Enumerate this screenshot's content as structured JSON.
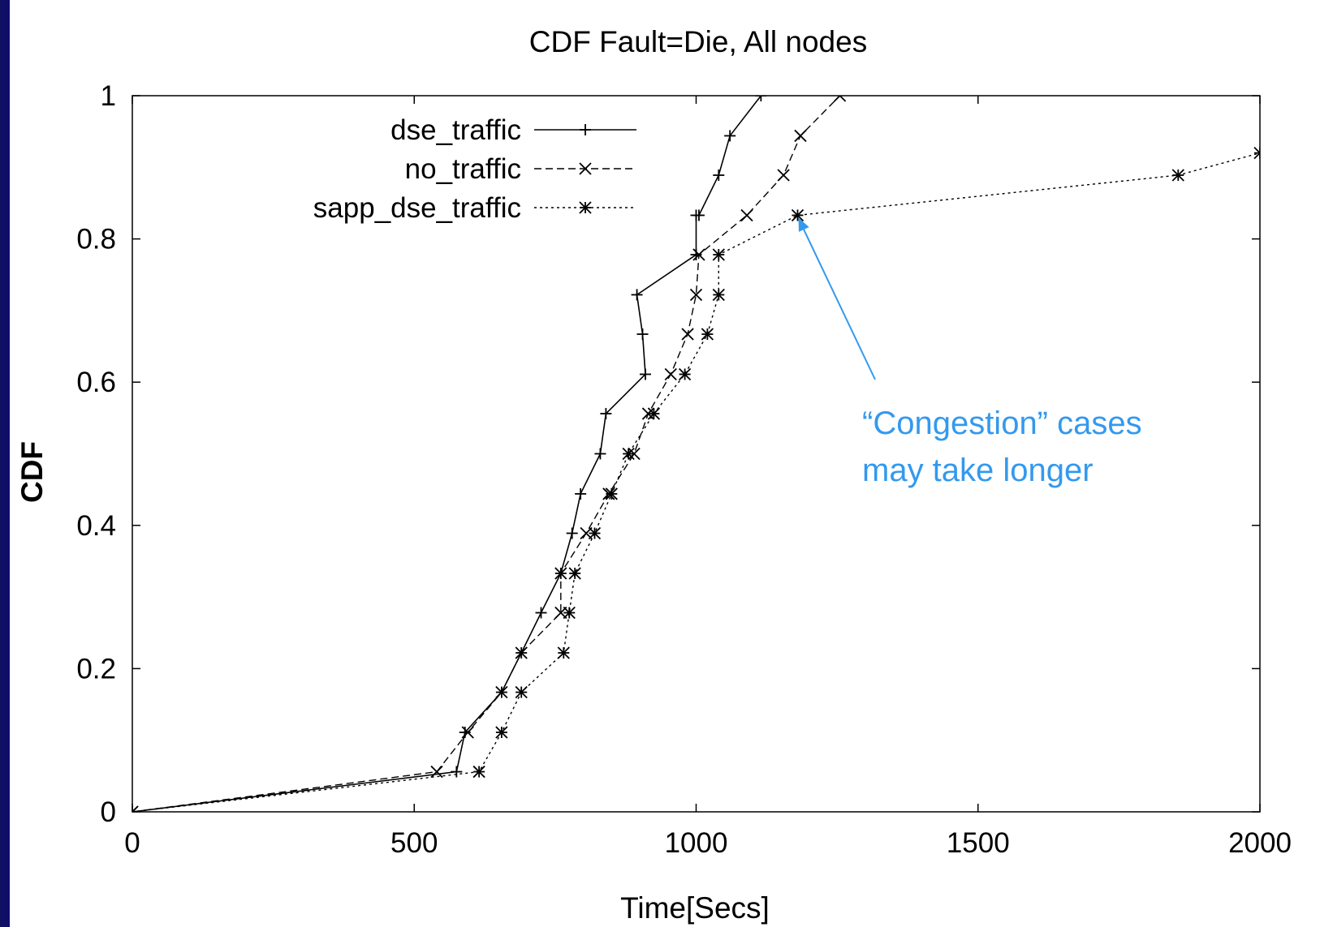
{
  "chart_data": {
    "type": "line",
    "title": "CDF Fault=Die, All nodes",
    "xlabel": "Time[Secs]",
    "ylabel": "CDF",
    "xlim": [
      0,
      2000
    ],
    "ylim": [
      0,
      1
    ],
    "xticks": [
      "0",
      "500",
      "1000",
      "1500",
      "2000"
    ],
    "yticks": [
      "0",
      "0.2",
      "0.4",
      "0.6",
      "0.8",
      "1"
    ],
    "grid": false,
    "legend_position": "top-left",
    "series": [
      {
        "name": "dse_traffic",
        "line_style": "solid",
        "marker": "+",
        "x": [
          0,
          575,
          590,
          655,
          690,
          725,
          760,
          780,
          795,
          830,
          840,
          910,
          905,
          895,
          1000,
          1000,
          1005,
          1040,
          1060,
          1115
        ],
        "y": [
          0,
          0.056,
          0.111,
          0.167,
          0.222,
          0.278,
          0.333,
          0.389,
          0.444,
          0.5,
          0.556,
          0.611,
          0.667,
          0.722,
          0.778,
          0.833,
          0.833,
          0.889,
          0.944,
          1.0
        ]
      },
      {
        "name": "no_traffic",
        "line_style": "dashed",
        "marker": "x",
        "x": [
          0,
          540,
          595,
          655,
          690,
          760,
          760,
          805,
          845,
          890,
          915,
          955,
          985,
          1000,
          1005,
          1090,
          1155,
          1185,
          1255
        ],
        "y": [
          0,
          0.056,
          0.111,
          0.167,
          0.222,
          0.278,
          0.333,
          0.389,
          0.444,
          0.5,
          0.556,
          0.611,
          0.667,
          0.722,
          0.778,
          0.833,
          0.889,
          0.944,
          1.0
        ]
      },
      {
        "name": "sapp_dse_traffic",
        "line_style": "dotted",
        "marker": "*",
        "x": [
          0,
          615,
          655,
          690,
          765,
          775,
          785,
          820,
          850,
          880,
          925,
          980,
          1020,
          1040,
          1040,
          1180,
          1855,
          2000
        ],
        "y": [
          0,
          0.056,
          0.111,
          0.167,
          0.222,
          0.278,
          0.333,
          0.389,
          0.444,
          0.5,
          0.556,
          0.611,
          0.667,
          0.722,
          0.778,
          0.833,
          0.889,
          0.92
        ]
      }
    ],
    "annotation": {
      "lines": [
        "“Congestion” cases",
        "may take longer"
      ],
      "points_to": {
        "x": 1180,
        "y": 0.833
      },
      "color": "#3399ee"
    }
  }
}
